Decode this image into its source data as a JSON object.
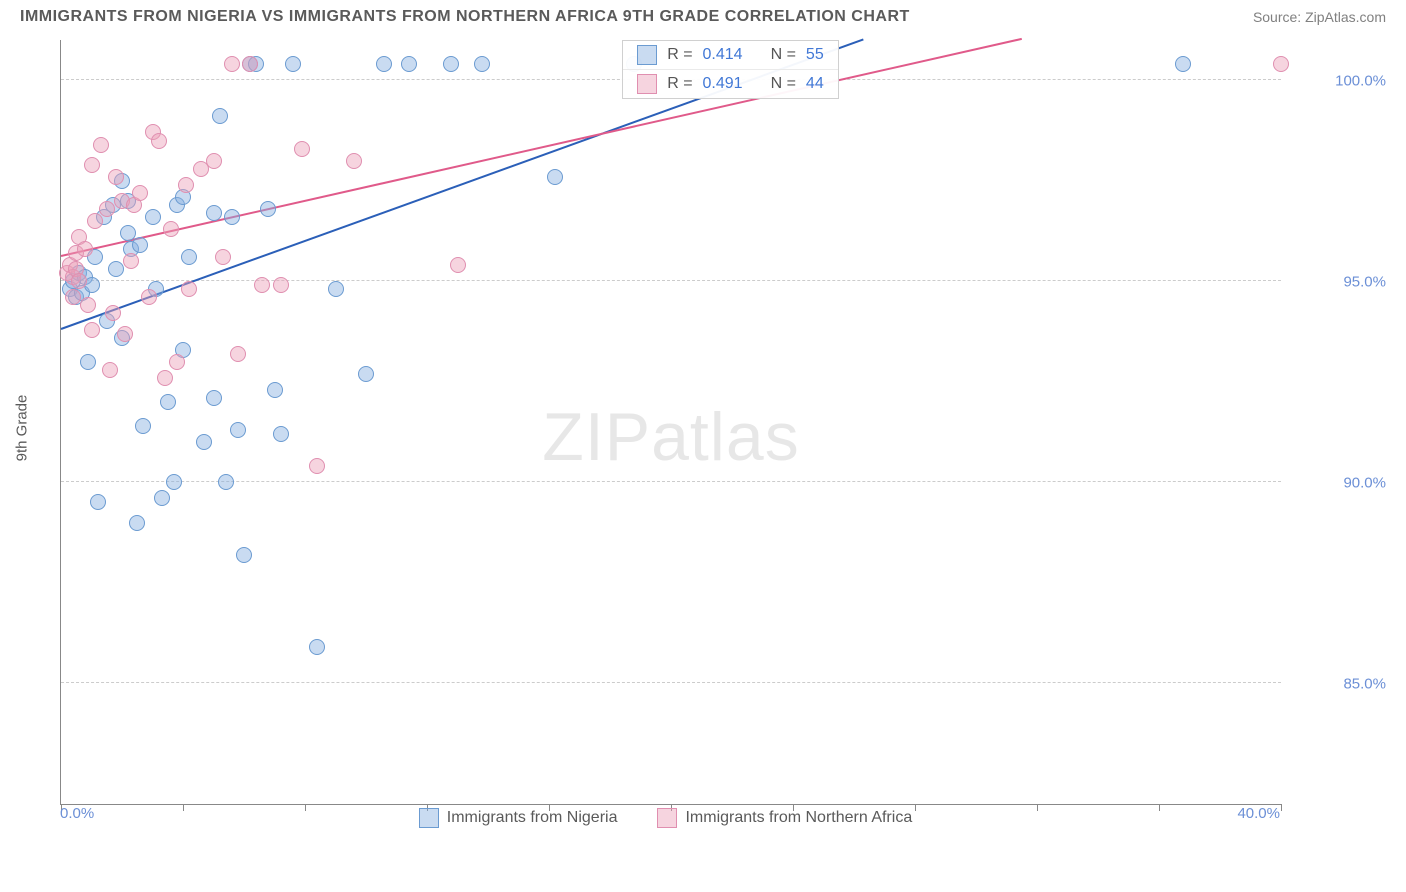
{
  "title": "IMMIGRANTS FROM NIGERIA VS IMMIGRANTS FROM NORTHERN AFRICA 9TH GRADE CORRELATION CHART",
  "source": "Source: ZipAtlas.com",
  "ylabel": "9th Grade",
  "watermark_a": "ZIP",
  "watermark_b": "atlas",
  "chart": {
    "type": "scatter",
    "xlim": [
      0,
      40
    ],
    "ylim": [
      82,
      101
    ],
    "x_ticks": [
      0,
      4,
      8,
      12,
      16,
      20,
      24,
      28,
      32,
      36,
      40
    ],
    "x_tick_labels": {
      "0": "0.0%",
      "40": "40.0%"
    },
    "y_ticks": [
      85,
      90,
      95,
      100
    ],
    "y_tick_labels": [
      "85.0%",
      "90.0%",
      "95.0%",
      "100.0%"
    ],
    "grid_color": "#cccccc",
    "axis_color": "#888888",
    "label_color": "#6b8fd6",
    "marker_radius": 8,
    "series": [
      {
        "name": "Immigrants from Nigeria",
        "fill": "rgba(135,175,225,0.45)",
        "stroke": "#6b9bd1",
        "line_color": "#2b5fb8",
        "R": "0.414",
        "N": "55",
        "trend": {
          "x1": 0,
          "y1": 93.8,
          "x2": 26.3,
          "y2": 101
        },
        "points": [
          [
            0.3,
            94.8
          ],
          [
            0.4,
            95.0
          ],
          [
            0.5,
            94.6
          ],
          [
            0.6,
            95.2
          ],
          [
            0.7,
            94.7
          ],
          [
            0.8,
            95.1
          ],
          [
            0.9,
            93.0
          ],
          [
            1.0,
            94.9
          ],
          [
            1.1,
            95.6
          ],
          [
            1.2,
            89.5
          ],
          [
            1.4,
            96.6
          ],
          [
            1.5,
            94.0
          ],
          [
            1.7,
            96.9
          ],
          [
            1.8,
            95.3
          ],
          [
            2.0,
            93.6
          ],
          [
            2.0,
            97.5
          ],
          [
            2.2,
            96.2
          ],
          [
            2.2,
            97.0
          ],
          [
            2.3,
            95.8
          ],
          [
            2.5,
            89.0
          ],
          [
            2.6,
            95.9
          ],
          [
            2.7,
            91.4
          ],
          [
            3.0,
            96.6
          ],
          [
            3.1,
            94.8
          ],
          [
            3.3,
            89.6
          ],
          [
            3.5,
            92.0
          ],
          [
            3.7,
            90.0
          ],
          [
            3.8,
            96.9
          ],
          [
            4.0,
            93.3
          ],
          [
            4.0,
            97.1
          ],
          [
            4.2,
            95.6
          ],
          [
            4.7,
            91.0
          ],
          [
            5.0,
            96.7
          ],
          [
            5.0,
            92.1
          ],
          [
            5.2,
            99.1
          ],
          [
            5.4,
            90.0
          ],
          [
            5.6,
            96.6
          ],
          [
            5.8,
            91.3
          ],
          [
            6.0,
            88.2
          ],
          [
            6.2,
            100.4
          ],
          [
            6.4,
            100.4
          ],
          [
            6.8,
            96.8
          ],
          [
            7.0,
            92.3
          ],
          [
            7.2,
            91.2
          ],
          [
            7.6,
            100.4
          ],
          [
            8.4,
            85.9
          ],
          [
            9.0,
            94.8
          ],
          [
            10.0,
            92.7
          ],
          [
            10.6,
            100.4
          ],
          [
            11.4,
            100.4
          ],
          [
            12.8,
            100.4
          ],
          [
            13.8,
            100.4
          ],
          [
            16.2,
            97.6
          ],
          [
            18.8,
            100.4
          ],
          [
            36.8,
            100.4
          ]
        ]
      },
      {
        "name": "Immigrants from Northern Africa",
        "fill": "rgba(235,160,185,0.45)",
        "stroke": "#e08fb0",
        "line_color": "#e05a8a",
        "R": "0.491",
        "N": "44",
        "trend": {
          "x1": 0,
          "y1": 95.6,
          "x2": 31.5,
          "y2": 101
        },
        "points": [
          [
            0.2,
            95.2
          ],
          [
            0.3,
            95.4
          ],
          [
            0.4,
            95.1
          ],
          [
            0.4,
            94.6
          ],
          [
            0.5,
            95.7
          ],
          [
            0.5,
            95.3
          ],
          [
            0.6,
            95.0
          ],
          [
            0.6,
            96.1
          ],
          [
            0.8,
            95.8
          ],
          [
            0.9,
            94.4
          ],
          [
            1.0,
            97.9
          ],
          [
            1.0,
            93.8
          ],
          [
            1.1,
            96.5
          ],
          [
            1.3,
            98.4
          ],
          [
            1.5,
            96.8
          ],
          [
            1.6,
            92.8
          ],
          [
            1.7,
            94.2
          ],
          [
            1.8,
            97.6
          ],
          [
            2.0,
            97.0
          ],
          [
            2.1,
            93.7
          ],
          [
            2.3,
            95.5
          ],
          [
            2.4,
            96.9
          ],
          [
            2.6,
            97.2
          ],
          [
            2.9,
            94.6
          ],
          [
            3.0,
            98.7
          ],
          [
            3.2,
            98.5
          ],
          [
            3.4,
            92.6
          ],
          [
            3.6,
            96.3
          ],
          [
            3.8,
            93.0
          ],
          [
            4.1,
            97.4
          ],
          [
            4.2,
            94.8
          ],
          [
            4.6,
            97.8
          ],
          [
            5.0,
            98.0
          ],
          [
            5.3,
            95.6
          ],
          [
            5.6,
            100.4
          ],
          [
            5.8,
            93.2
          ],
          [
            6.2,
            100.4
          ],
          [
            6.6,
            94.9
          ],
          [
            7.2,
            94.9
          ],
          [
            7.9,
            98.3
          ],
          [
            8.4,
            90.4
          ],
          [
            9.6,
            98.0
          ],
          [
            13.0,
            95.4
          ],
          [
            40.0,
            100.4
          ]
        ]
      }
    ]
  },
  "legend_labels": {
    "R": "R =",
    "N": "N ="
  }
}
